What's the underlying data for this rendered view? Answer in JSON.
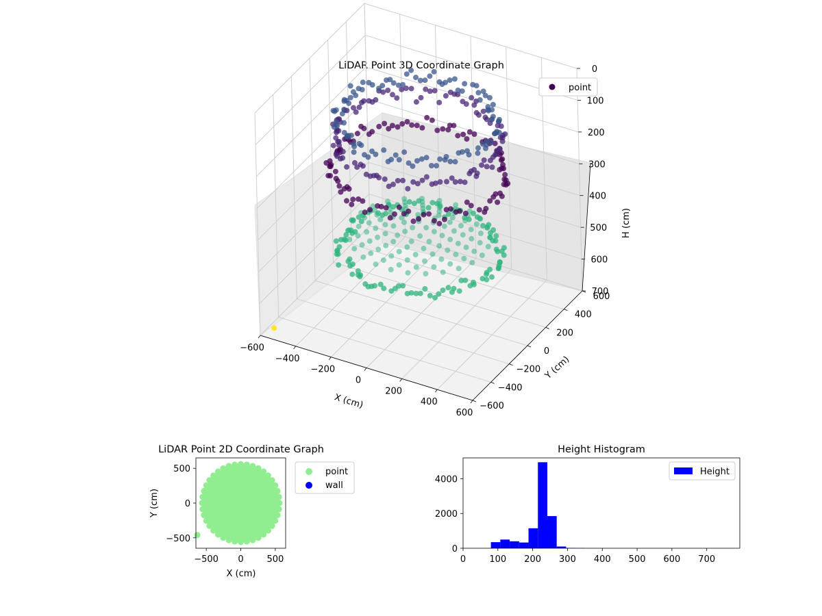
{
  "chart_data": [
    {
      "type": "scatter",
      "projection": "3d",
      "title": "LiDAR Point 3D Coordinate Graph",
      "xlabel": "X (cm)",
      "ylabel": "Y (cm)",
      "zlabel": "H (cm)",
      "xlim": [
        -600,
        600
      ],
      "ylim": [
        -600,
        600
      ],
      "zlim": [
        0,
        700
      ],
      "z_inverted": true,
      "xticks": [
        -600,
        -400,
        -200,
        0,
        200,
        400,
        600
      ],
      "yticks": [
        -600,
        -400,
        -200,
        0,
        200,
        400,
        600
      ],
      "zticks": [
        0,
        100,
        200,
        300,
        400,
        500,
        600,
        700
      ],
      "colormap": "viridis",
      "grid": true,
      "legend": {
        "placement": "top-right",
        "entries": [
          {
            "label": "point",
            "color": "#440154"
          }
        ]
      },
      "series": [
        {
          "name": "point",
          "groups": [
            {
              "shape": "wall-ring",
              "radius": 440,
              "h": 250,
              "color": "#440154"
            },
            {
              "shape": "wall-ring",
              "radius": 420,
              "h": 150,
              "color": "#482677"
            },
            {
              "shape": "wall-ring",
              "radius": 400,
              "h": 90,
              "color": "#39568c"
            },
            {
              "shape": "floor-disc",
              "radius": 380,
              "h": 420,
              "color": "#29af7f"
            },
            {
              "shape": "lower-ring",
              "radius": 400,
              "h": 500,
              "color": "#2fb47c"
            }
          ],
          "outliers": [
            {
              "x": -600,
              "y": -450,
              "h": 720,
              "color": "#fde725"
            }
          ]
        }
      ]
    },
    {
      "type": "scatter",
      "title": "LiDAR Point 2D Coordinate Graph",
      "xlabel": "X (cm)",
      "ylabel": "Y (cm)",
      "xlim": [
        -650,
        650
      ],
      "ylim": [
        -650,
        650
      ],
      "xticks": [
        -500,
        0,
        500
      ],
      "yticks": [
        -500,
        0,
        500
      ],
      "grid": false,
      "legend": {
        "placement": "outside-right",
        "entries": [
          {
            "label": "point",
            "color": "#90ee90"
          },
          {
            "label": "wall",
            "color": "#0000ff"
          }
        ]
      },
      "series": [
        {
          "name": "point",
          "color": "#90ee90",
          "shape": "disc",
          "center": [
            0,
            0
          ],
          "radius": 560
        },
        {
          "name": "point",
          "color": "#90ee90",
          "x": [
            -630
          ],
          "y": [
            -460
          ]
        }
      ]
    },
    {
      "type": "bar",
      "subtype": "histogram",
      "title": "Height Histogram",
      "xlabel": "",
      "ylabel": "",
      "xlim": [
        0,
        795
      ],
      "ylim": [
        0,
        5200
      ],
      "xticks": [
        0,
        100,
        200,
        300,
        400,
        500,
        600,
        700
      ],
      "yticks": [
        0,
        2000,
        4000
      ],
      "grid": false,
      "bar_color": "#0000ff",
      "legend": {
        "placement": "top-right",
        "entries": [
          {
            "label": "Height",
            "color": "#0000ff"
          }
        ]
      },
      "series": [
        {
          "name": "Height",
          "bin_edges": [
            80,
            107,
            134,
            161,
            188,
            215,
            242,
            269,
            296,
            323,
            350
          ],
          "values": [
            350,
            500,
            400,
            330,
            1150,
            4950,
            1850,
            100,
            20,
            10
          ]
        }
      ]
    }
  ]
}
